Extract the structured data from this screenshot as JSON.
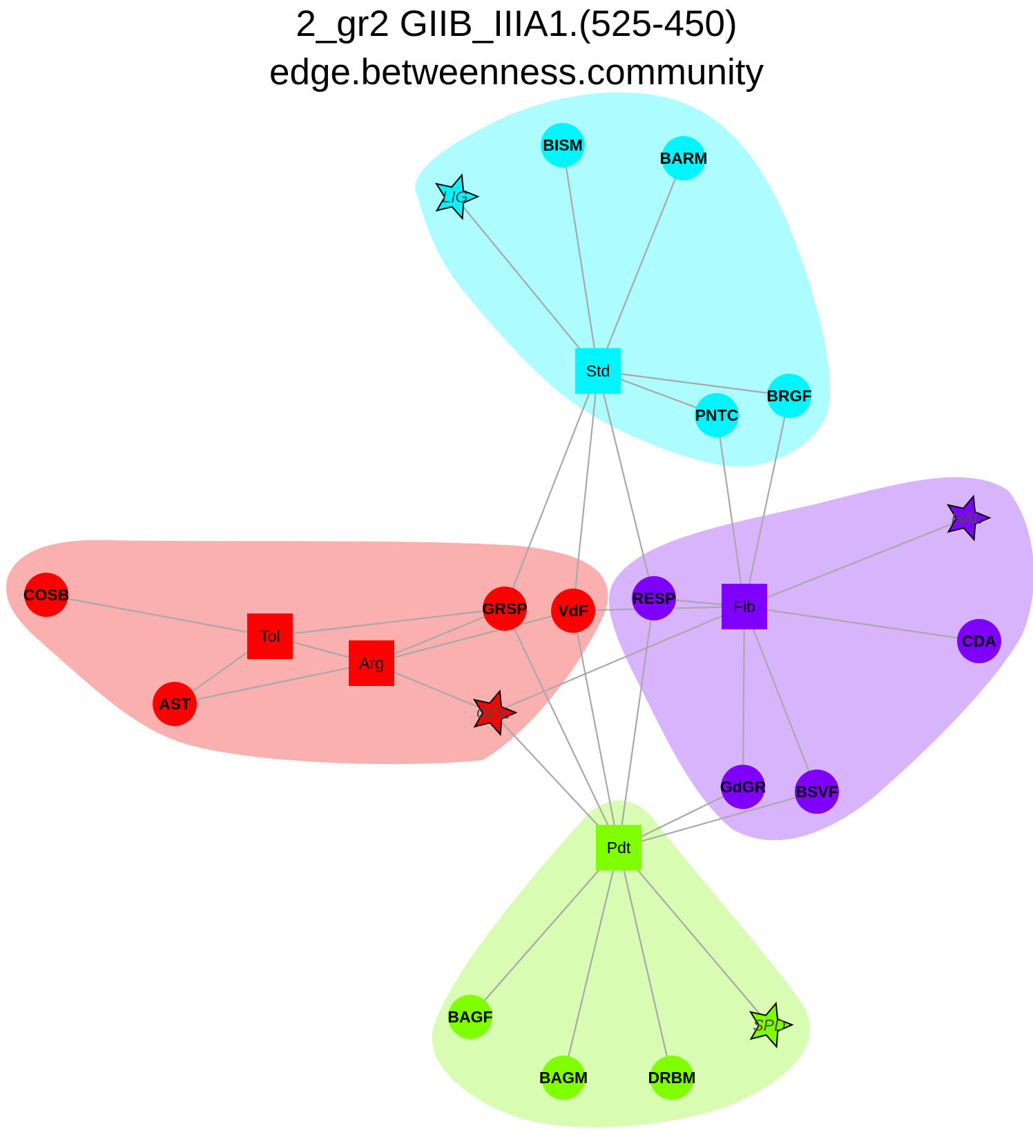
{
  "title": "2_gr2 GIIB_IIIA1.(525-450)",
  "subtitle": "edge.betweenness.community",
  "colors": {
    "cyan": "#00f5ff",
    "red": "#ff0000",
    "purple": "#7f00ff",
    "green": "#80ff00",
    "cyan_hull": "#adfcff",
    "red_hull": "#fbb0b0",
    "purple_hull": "#d8b4fc",
    "green_hull": "#d9fcb3",
    "edge": "#a8a8a8"
  },
  "communities": [
    {
      "id": "cyan",
      "nodes": [
        "LIG",
        "BISM",
        "BARM",
        "Std",
        "PNTC",
        "BRGF"
      ]
    },
    {
      "id": "red",
      "nodes": [
        "COSB",
        "Tol",
        "AST",
        "Arg",
        "GRSP",
        "VdF",
        "GOL"
      ]
    },
    {
      "id": "purple",
      "nodes": [
        "RESP",
        "Fib",
        "HAL",
        "CDA",
        "GdGR",
        "BSVF"
      ]
    },
    {
      "id": "green",
      "nodes": [
        "Pdt",
        "BAGF",
        "BAGM",
        "DRBM",
        "SPD"
      ]
    }
  ],
  "nodes": [
    {
      "id": "BISM",
      "label": "BISM",
      "shape": "circle",
      "group": "cyan"
    },
    {
      "id": "BARM",
      "label": "BARM",
      "shape": "circle",
      "group": "cyan"
    },
    {
      "id": "LIG",
      "label": "LIG",
      "shape": "star",
      "group": "cyan"
    },
    {
      "id": "Std",
      "label": "Std",
      "shape": "square",
      "group": "cyan"
    },
    {
      "id": "BRGF",
      "label": "BRGF",
      "shape": "circle",
      "group": "cyan"
    },
    {
      "id": "PNTC",
      "label": "PNTC",
      "shape": "circle",
      "group": "cyan"
    },
    {
      "id": "HAL",
      "label": "HAL",
      "shape": "star",
      "group": "purple"
    },
    {
      "id": "COSB",
      "label": "COSB",
      "shape": "circle",
      "group": "red"
    },
    {
      "id": "GRSP",
      "label": "GRSP",
      "shape": "circle",
      "group": "red"
    },
    {
      "id": "VdF",
      "label": "VdF",
      "shape": "circle",
      "group": "red"
    },
    {
      "id": "RESP",
      "label": "RESP",
      "shape": "circle",
      "group": "purple"
    },
    {
      "id": "Fib",
      "label": "Fib",
      "shape": "square",
      "group": "purple"
    },
    {
      "id": "Tol",
      "label": "Tol",
      "shape": "square",
      "group": "red"
    },
    {
      "id": "CDA",
      "label": "CDA",
      "shape": "circle",
      "group": "purple"
    },
    {
      "id": "Arg",
      "label": "Arg",
      "shape": "square",
      "group": "red"
    },
    {
      "id": "AST",
      "label": "AST",
      "shape": "circle",
      "group": "red"
    },
    {
      "id": "GOL",
      "label": "GOL",
      "shape": "star",
      "group": "red"
    },
    {
      "id": "GdGR",
      "label": "GdGR",
      "shape": "circle",
      "group": "purple"
    },
    {
      "id": "BSVF",
      "label": "BSVF",
      "shape": "circle",
      "group": "purple"
    },
    {
      "id": "Pdt",
      "label": "Pdt",
      "shape": "square",
      "group": "green"
    },
    {
      "id": "BAGF",
      "label": "BAGF",
      "shape": "circle",
      "group": "green"
    },
    {
      "id": "SPD",
      "label": "SPD",
      "shape": "star",
      "group": "green"
    },
    {
      "id": "BAGM",
      "label": "BAGM",
      "shape": "circle",
      "group": "green"
    },
    {
      "id": "DRBM",
      "label": "DRBM",
      "shape": "circle",
      "group": "green"
    }
  ],
  "edges": [
    [
      "Std",
      "LIG"
    ],
    [
      "Std",
      "BISM"
    ],
    [
      "Std",
      "BARM"
    ],
    [
      "Std",
      "PNTC"
    ],
    [
      "Std",
      "BRGF"
    ],
    [
      "Std",
      "GRSP"
    ],
    [
      "Std",
      "VdF"
    ],
    [
      "Std",
      "RESP"
    ],
    [
      "Fib",
      "PNTC"
    ],
    [
      "Fib",
      "BRGF"
    ],
    [
      "Fib",
      "HAL"
    ],
    [
      "Fib",
      "RESP"
    ],
    [
      "Fib",
      "VdF"
    ],
    [
      "Fib",
      "CDA"
    ],
    [
      "Fib",
      "GdGR"
    ],
    [
      "Fib",
      "BSVF"
    ],
    [
      "Fib",
      "GOL"
    ],
    [
      "Tol",
      "COSB"
    ],
    [
      "Tol",
      "AST"
    ],
    [
      "Tol",
      "Arg"
    ],
    [
      "Tol",
      "GRSP"
    ],
    [
      "Arg",
      "AST"
    ],
    [
      "Arg",
      "GRSP"
    ],
    [
      "Arg",
      "VdF"
    ],
    [
      "Arg",
      "GOL"
    ],
    [
      "Pdt",
      "GRSP"
    ],
    [
      "Pdt",
      "VdF"
    ],
    [
      "Pdt",
      "RESP"
    ],
    [
      "Pdt",
      "GOL"
    ],
    [
      "Pdt",
      "GdGR"
    ],
    [
      "Pdt",
      "BSVF"
    ],
    [
      "Pdt",
      "BAGF"
    ],
    [
      "Pdt",
      "BAGM"
    ],
    [
      "Pdt",
      "DRBM"
    ],
    [
      "Pdt",
      "SPD"
    ]
  ]
}
